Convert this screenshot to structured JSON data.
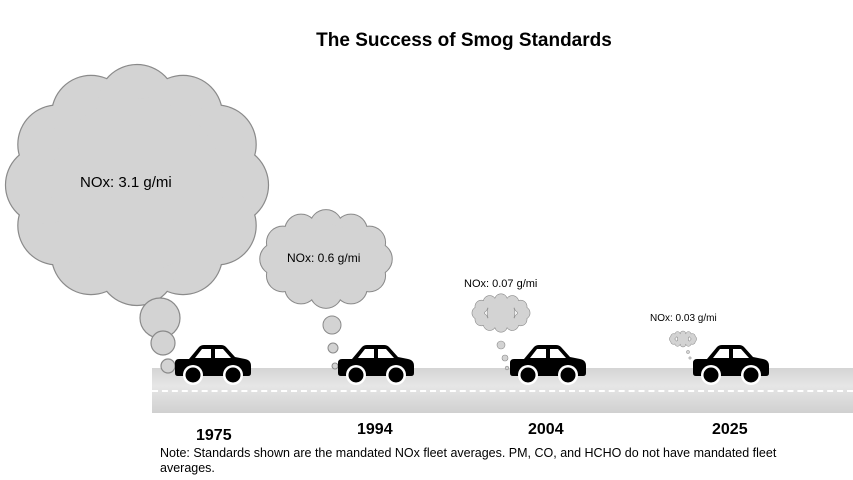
{
  "title": "The Success of Smog Standards",
  "milestones": [
    {
      "year": "1975",
      "label": "NOx: 3.1 g/mi",
      "nox_g_per_mi": 3.1
    },
    {
      "year": "1994",
      "label": "NOx: 0.6 g/mi",
      "nox_g_per_mi": 0.6
    },
    {
      "year": "2004",
      "label": "NOx: 0.07 g/mi",
      "nox_g_per_mi": 0.07
    },
    {
      "year": "2025",
      "label": "NOx: 0.03 g/mi",
      "nox_g_per_mi": 0.03
    }
  ],
  "note": "Note: Standards shown are the mandated NOx fleet averages. PM, CO, and HCHO do not have mandated fleet averages.",
  "colors": {
    "cloud": "#d3d3d3",
    "cloud_outline": "#8a8a8a",
    "car": "#000000",
    "road": "#d9d9d9"
  }
}
